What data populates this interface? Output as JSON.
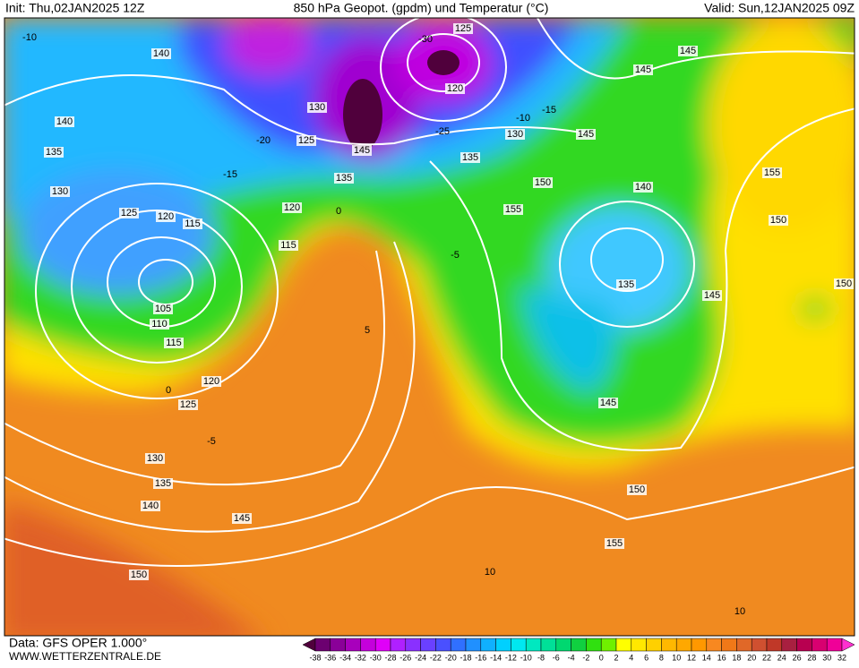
{
  "header": {
    "init": "Init: Thu,02JAN2025 12Z",
    "title": "850 hPa Geopot. (gpdm) und Temperatur (°C)",
    "valid": "Valid: Sun,12JAN2025 09Z"
  },
  "footer": {
    "data": "Data: GFS OPER 1.000°",
    "site": "WWW.WETTERZENTRALE.DE"
  },
  "geopotential_labels": [
    140,
    140,
    135,
    130,
    125,
    120,
    115,
    105,
    110,
    115,
    120,
    125,
    130,
    135,
    140,
    145,
    150,
    125,
    120,
    130,
    125,
    130,
    135,
    145,
    135,
    120,
    115,
    150,
    155,
    145,
    145,
    145,
    140,
    135,
    155,
    150,
    145,
    150,
    145,
    150,
    155
  ],
  "temperature_labels": [
    -10,
    -15,
    -20,
    -25,
    -30,
    -10,
    -15,
    0,
    -5,
    0,
    -5,
    5,
    10,
    10
  ],
  "legend": {
    "labels": [
      -38,
      -36,
      -34,
      -32,
      -30,
      -28,
      -26,
      -24,
      -22,
      -20,
      -18,
      -16,
      -14,
      -12,
      -10,
      -8,
      -6,
      -4,
      -2,
      0,
      2,
      4,
      6,
      8,
      10,
      12,
      14,
      16,
      18,
      20,
      22,
      24,
      26,
      28,
      30,
      32
    ],
    "colors": [
      "#50003c",
      "#6c0070",
      "#8a0098",
      "#a800bc",
      "#c400dc",
      "#e000f8",
      "#b020ff",
      "#8a30ff",
      "#6a40ff",
      "#4a50ff",
      "#3070ff",
      "#2090ff",
      "#10b0ff",
      "#00d0ff",
      "#00e8f0",
      "#00e8c0",
      "#00e098",
      "#00d870",
      "#10d040",
      "#30e010",
      "#70f000",
      "#ffff00",
      "#ffe800",
      "#ffd000",
      "#ffb800",
      "#ffa800",
      "#ff9800",
      "#f88820",
      "#f07818",
      "#e06828",
      "#d05030",
      "#c03828",
      "#a82040",
      "#b80050",
      "#d80070",
      "#f00098",
      "#ff30d0"
    ]
  }
}
